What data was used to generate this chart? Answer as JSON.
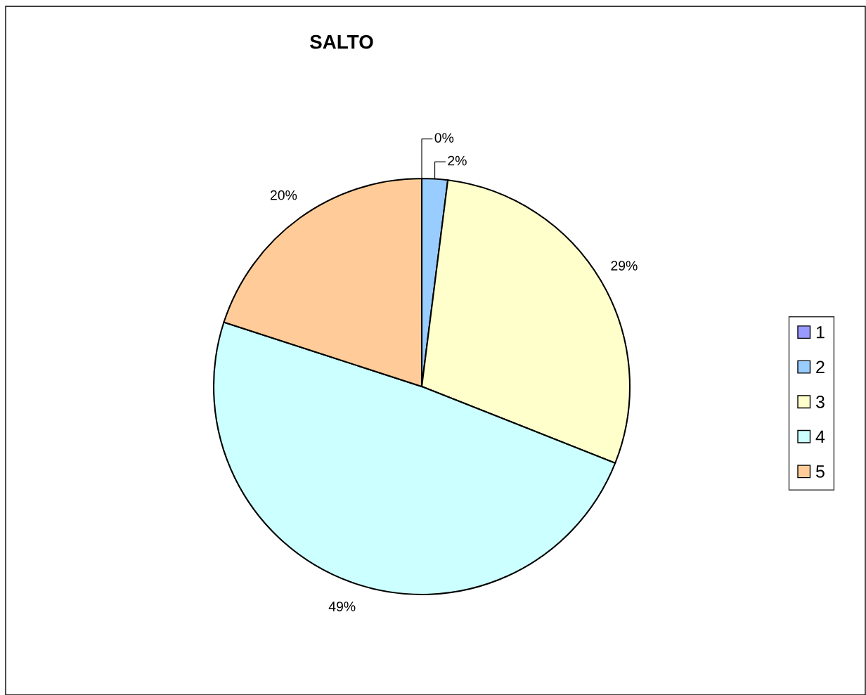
{
  "chart_data": {
    "type": "pie",
    "title": "SALTO",
    "categories": [
      "1",
      "2",
      "3",
      "4",
      "5"
    ],
    "values": [
      0,
      2,
      29,
      49,
      20
    ],
    "value_labels": [
      "0%",
      "2%",
      "29%",
      "49%",
      "20%"
    ],
    "colors": [
      "#9999ff",
      "#99ccff",
      "#ffffcc",
      "#ccffff",
      "#ffcc99"
    ],
    "legend": "right"
  }
}
